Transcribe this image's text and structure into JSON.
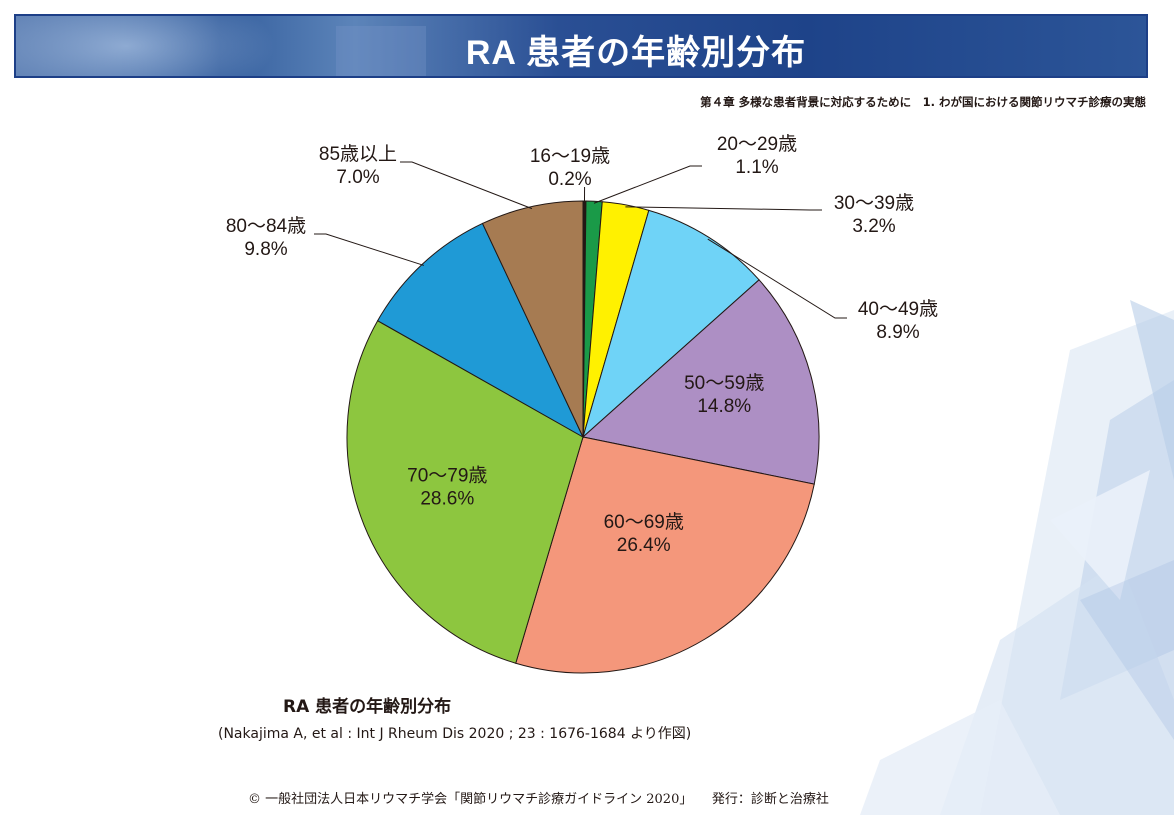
{
  "header": {
    "title": "RA 患者の年齢別分布",
    "subtitle": "第４章 多様な患者背景に対応するために　1. わが国における関節リウマチ診療の実態"
  },
  "chart_data": {
    "type": "pie",
    "start_angle": "12 o'clock",
    "direction": "clockwise",
    "slices": [
      {
        "name": "16〜19歳",
        "value": 0.2,
        "label": "0.2%",
        "color": "#231815"
      },
      {
        "name": "20〜29歳",
        "value": 1.1,
        "label": "1.1%",
        "color": "#1a9a48"
      },
      {
        "name": "30〜39歳",
        "value": 3.2,
        "label": "3.2%",
        "color": "#fff100"
      },
      {
        "name": "40〜49歳",
        "value": 8.9,
        "label": "8.9%",
        "color": "#6fd3f7"
      },
      {
        "name": "50〜59歳",
        "value": 14.8,
        "label": "14.8%",
        "color": "#ad8fc4"
      },
      {
        "name": "60〜69歳",
        "value": 26.4,
        "label": "26.4%",
        "color": "#f4977b"
      },
      {
        "name": "70〜79歳",
        "value": 28.6,
        "label": "28.6%",
        "color": "#8dc63f"
      },
      {
        "name": "80〜84歳",
        "value": 9.8,
        "label": "9.8%",
        "color": "#1f9ad6"
      },
      {
        "name": "85歳以上",
        "value": 7.0,
        "label": "7.0%",
        "color": "#a67b52"
      }
    ]
  },
  "caption": {
    "title": "RA 患者の年齢別分布",
    "source": "(Nakajima A, et al : Int J Rheum Dis 2020 ; 23 : 1676-1684 より作図)"
  },
  "footer": {
    "copyright": "© 一般社団法人日本リウマチ学会「関節リウマチ診療ガイドライン 2020」　　発行：診断と治療社"
  }
}
